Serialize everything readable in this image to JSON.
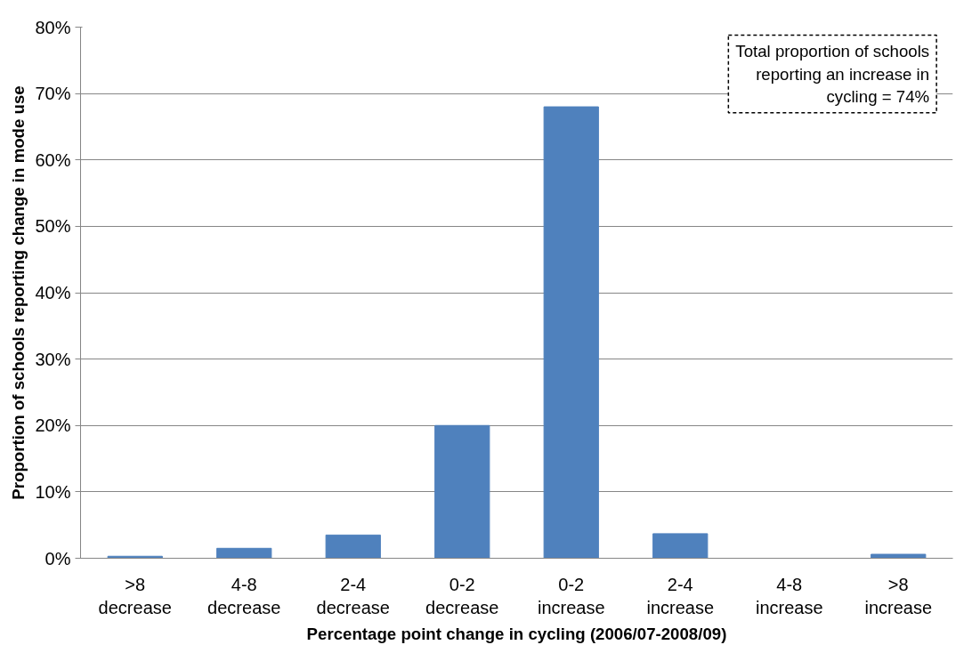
{
  "chart_data": {
    "type": "bar",
    "categories": [
      ">8\ndecrease",
      "4-8\ndecrease",
      "2-4\ndecrease",
      "0-2\ndecrease",
      "0-2\nincrease",
      "2-4\nincrease",
      "4-8\nincrease",
      ">8\nincrease"
    ],
    "values": [
      0.3,
      1.5,
      3.5,
      20,
      68,
      3.7,
      0,
      0.6
    ],
    "color": "#4f81bd",
    "xlabel": "Percentage point change in cycling (2006/07-2008/09)",
    "ylabel": "Proportion of schools reporting change in mode use",
    "ylim": [
      0,
      80
    ],
    "yticks": [
      {
        "value": 0,
        "label": "0%"
      },
      {
        "value": 10,
        "label": "10%"
      },
      {
        "value": 20,
        "label": "20%"
      },
      {
        "value": 30,
        "label": "30%"
      },
      {
        "value": 40,
        "label": "40%"
      },
      {
        "value": 50,
        "label": "50%"
      },
      {
        "value": 60,
        "label": "60%"
      },
      {
        "value": 70,
        "label": "70%"
      },
      {
        "value": 80,
        "label": "80%"
      }
    ],
    "grid": "y",
    "annotations": [
      "Total proportion of schools reporting an increase in cycling = 74%"
    ]
  }
}
